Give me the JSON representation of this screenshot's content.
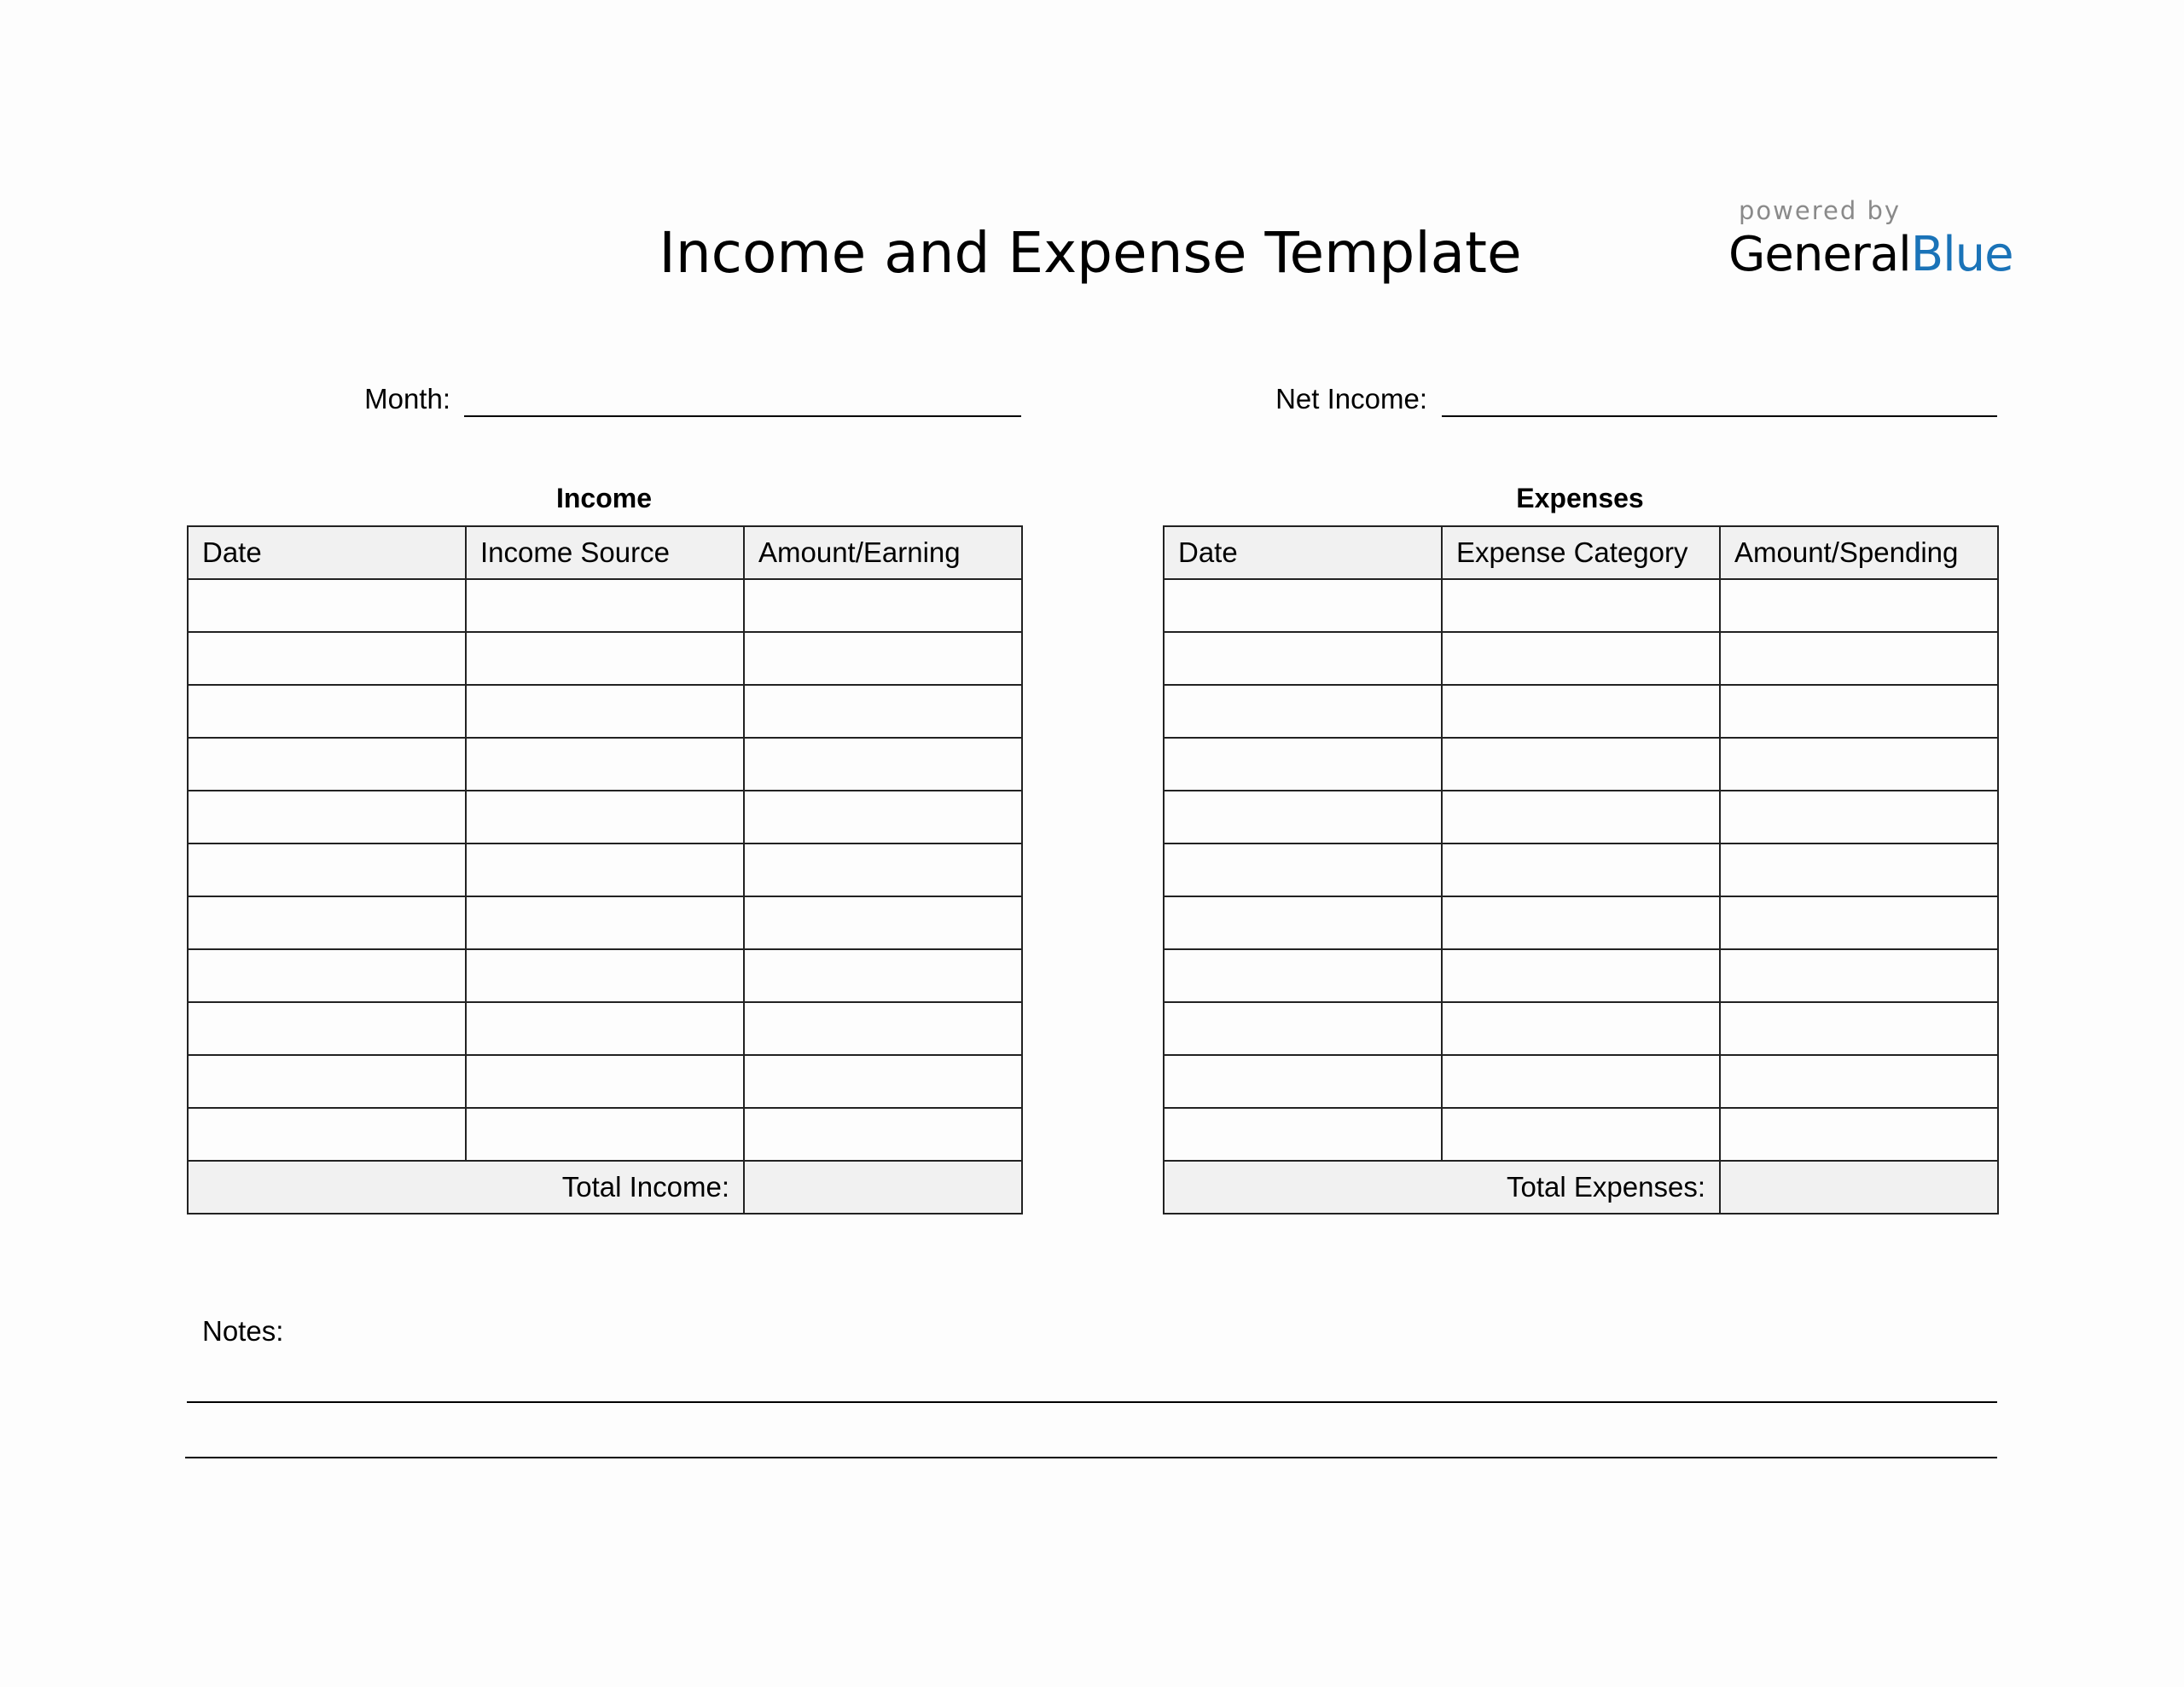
{
  "title": "Income and Expense Template",
  "logo": {
    "powered_by": "powered by",
    "brand_part1": "General",
    "brand_part2": "Blue",
    "brand_color": "#1a73b8"
  },
  "fields": {
    "month_label": "Month:",
    "month_value": "",
    "net_income_label": "Net Income:",
    "net_income_value": ""
  },
  "income": {
    "caption": "Income",
    "columns": [
      "Date",
      "Income Source",
      "Amount/Earning"
    ],
    "row_count": 11,
    "total_label": "Total Income:",
    "total_value": ""
  },
  "expenses": {
    "caption": "Expenses",
    "columns": [
      "Date",
      "Expense Category",
      "Amount/Spending"
    ],
    "row_count": 11,
    "total_label": "Total Expenses:",
    "total_value": ""
  },
  "notes": {
    "label": "Notes:"
  }
}
